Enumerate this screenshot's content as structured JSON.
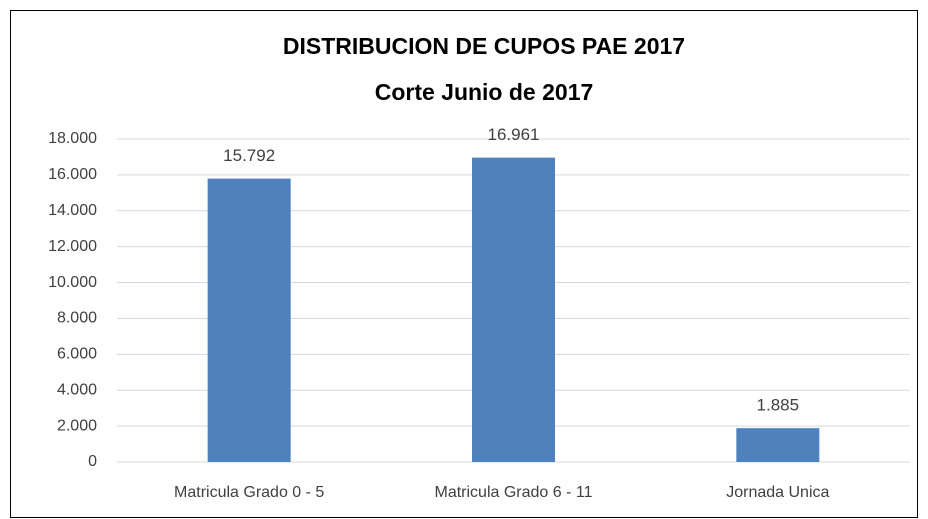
{
  "chart_data": {
    "type": "bar",
    "title": "DISTRIBUCION DE CUPOS PAE 2017",
    "subtitle": "Corte  Junio de 2017",
    "categories": [
      "Matricula Grado 0 - 5",
      "Matricula Grado 6 - 11",
      "Jornada Unica"
    ],
    "values": [
      15792,
      16961,
      1885
    ],
    "value_labels": [
      "15.792",
      "16.961",
      "1.885"
    ],
    "color": "#4f81bd",
    "ylim": [
      0,
      18000
    ],
    "yticks": [
      0,
      {
        "value": 2000,
        "label": "2.000"
      },
      {
        "value": 4000,
        "label": "4.000"
      },
      {
        "value": 6000,
        "label": "6.000"
      },
      {
        "value": 8000,
        "label": "8.000"
      },
      {
        "value": 10000,
        "label": "10.000"
      },
      {
        "value": 12000,
        "label": "12.000"
      },
      {
        "value": 14000,
        "label": "14.000"
      },
      {
        "value": 16000,
        "label": "16.000"
      },
      {
        "value": 18000,
        "label": "18.000"
      }
    ],
    "grid": true
  }
}
